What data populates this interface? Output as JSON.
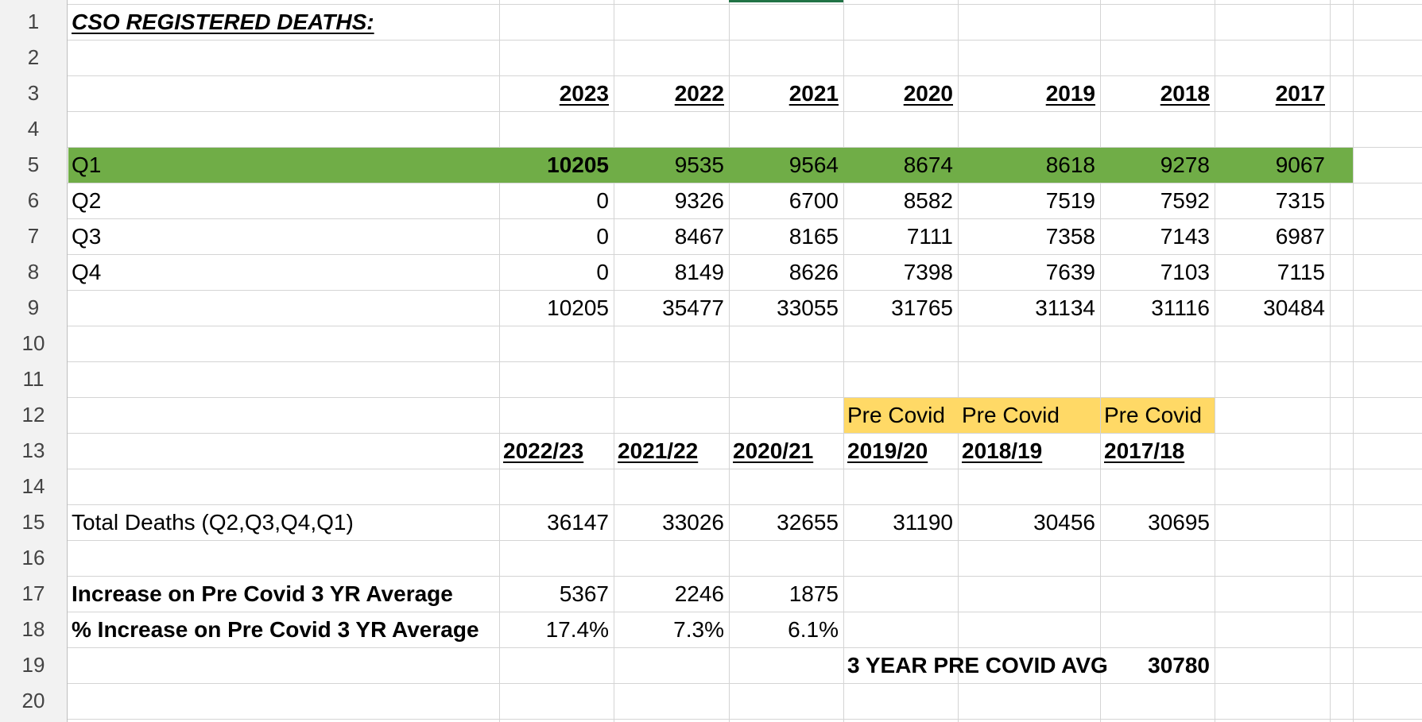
{
  "title": "CSO REGISTERED DEATHS:",
  "row_numbers": [
    "1",
    "2",
    "3",
    "4",
    "5",
    "6",
    "7",
    "8",
    "9",
    "10",
    "11",
    "12",
    "13",
    "14",
    "15",
    "16",
    "17",
    "18",
    "19",
    "20"
  ],
  "year_headers": [
    "2023",
    "2022",
    "2021",
    "2020",
    "2019",
    "2018",
    "2017"
  ],
  "quarters": [
    {
      "label": "Q1",
      "values": [
        "10205",
        "9535",
        "9564",
        "8674",
        "8618",
        "9278",
        "9067"
      ]
    },
    {
      "label": "Q2",
      "values": [
        "0",
        "9326",
        "6700",
        "8582",
        "7519",
        "7592",
        "7315"
      ]
    },
    {
      "label": "Q3",
      "values": [
        "0",
        "8467",
        "8165",
        "7111",
        "7358",
        "7143",
        "6987"
      ]
    },
    {
      "label": "Q4",
      "values": [
        "0",
        "8149",
        "8626",
        "7398",
        "7639",
        "7103",
        "7115"
      ]
    }
  ],
  "yearly_totals": [
    "10205",
    "35477",
    "33055",
    "31765",
    "31134",
    "31116",
    "30484"
  ],
  "pre_covid_tags": [
    "Pre Covid",
    "Pre Covid",
    "Pre Covid"
  ],
  "period_headers": [
    "2022/23",
    "2021/22",
    "2020/21",
    "2019/20",
    "2018/19",
    "2017/18"
  ],
  "total_deaths": {
    "label": "Total Deaths (Q2,Q3,Q4,Q1)",
    "values": [
      "36147",
      "33026",
      "32655",
      "31190",
      "30456",
      "30695"
    ]
  },
  "increase": {
    "label": "Increase on Pre Covid 3 YR Average",
    "values": [
      "5367",
      "2246",
      "1875"
    ]
  },
  "pct_increase": {
    "label": "% Increase on Pre Covid 3 YR Average",
    "values": [
      "17.4%",
      "7.3%",
      "6.1%"
    ]
  },
  "avg": {
    "label": "3 YEAR PRE COVID AVG",
    "value": "30780"
  },
  "colors": {
    "highlight_green": "#70ad47",
    "highlight_yellow": "#ffd966",
    "grid": "#d4d4d4",
    "active_column": "#217346"
  }
}
